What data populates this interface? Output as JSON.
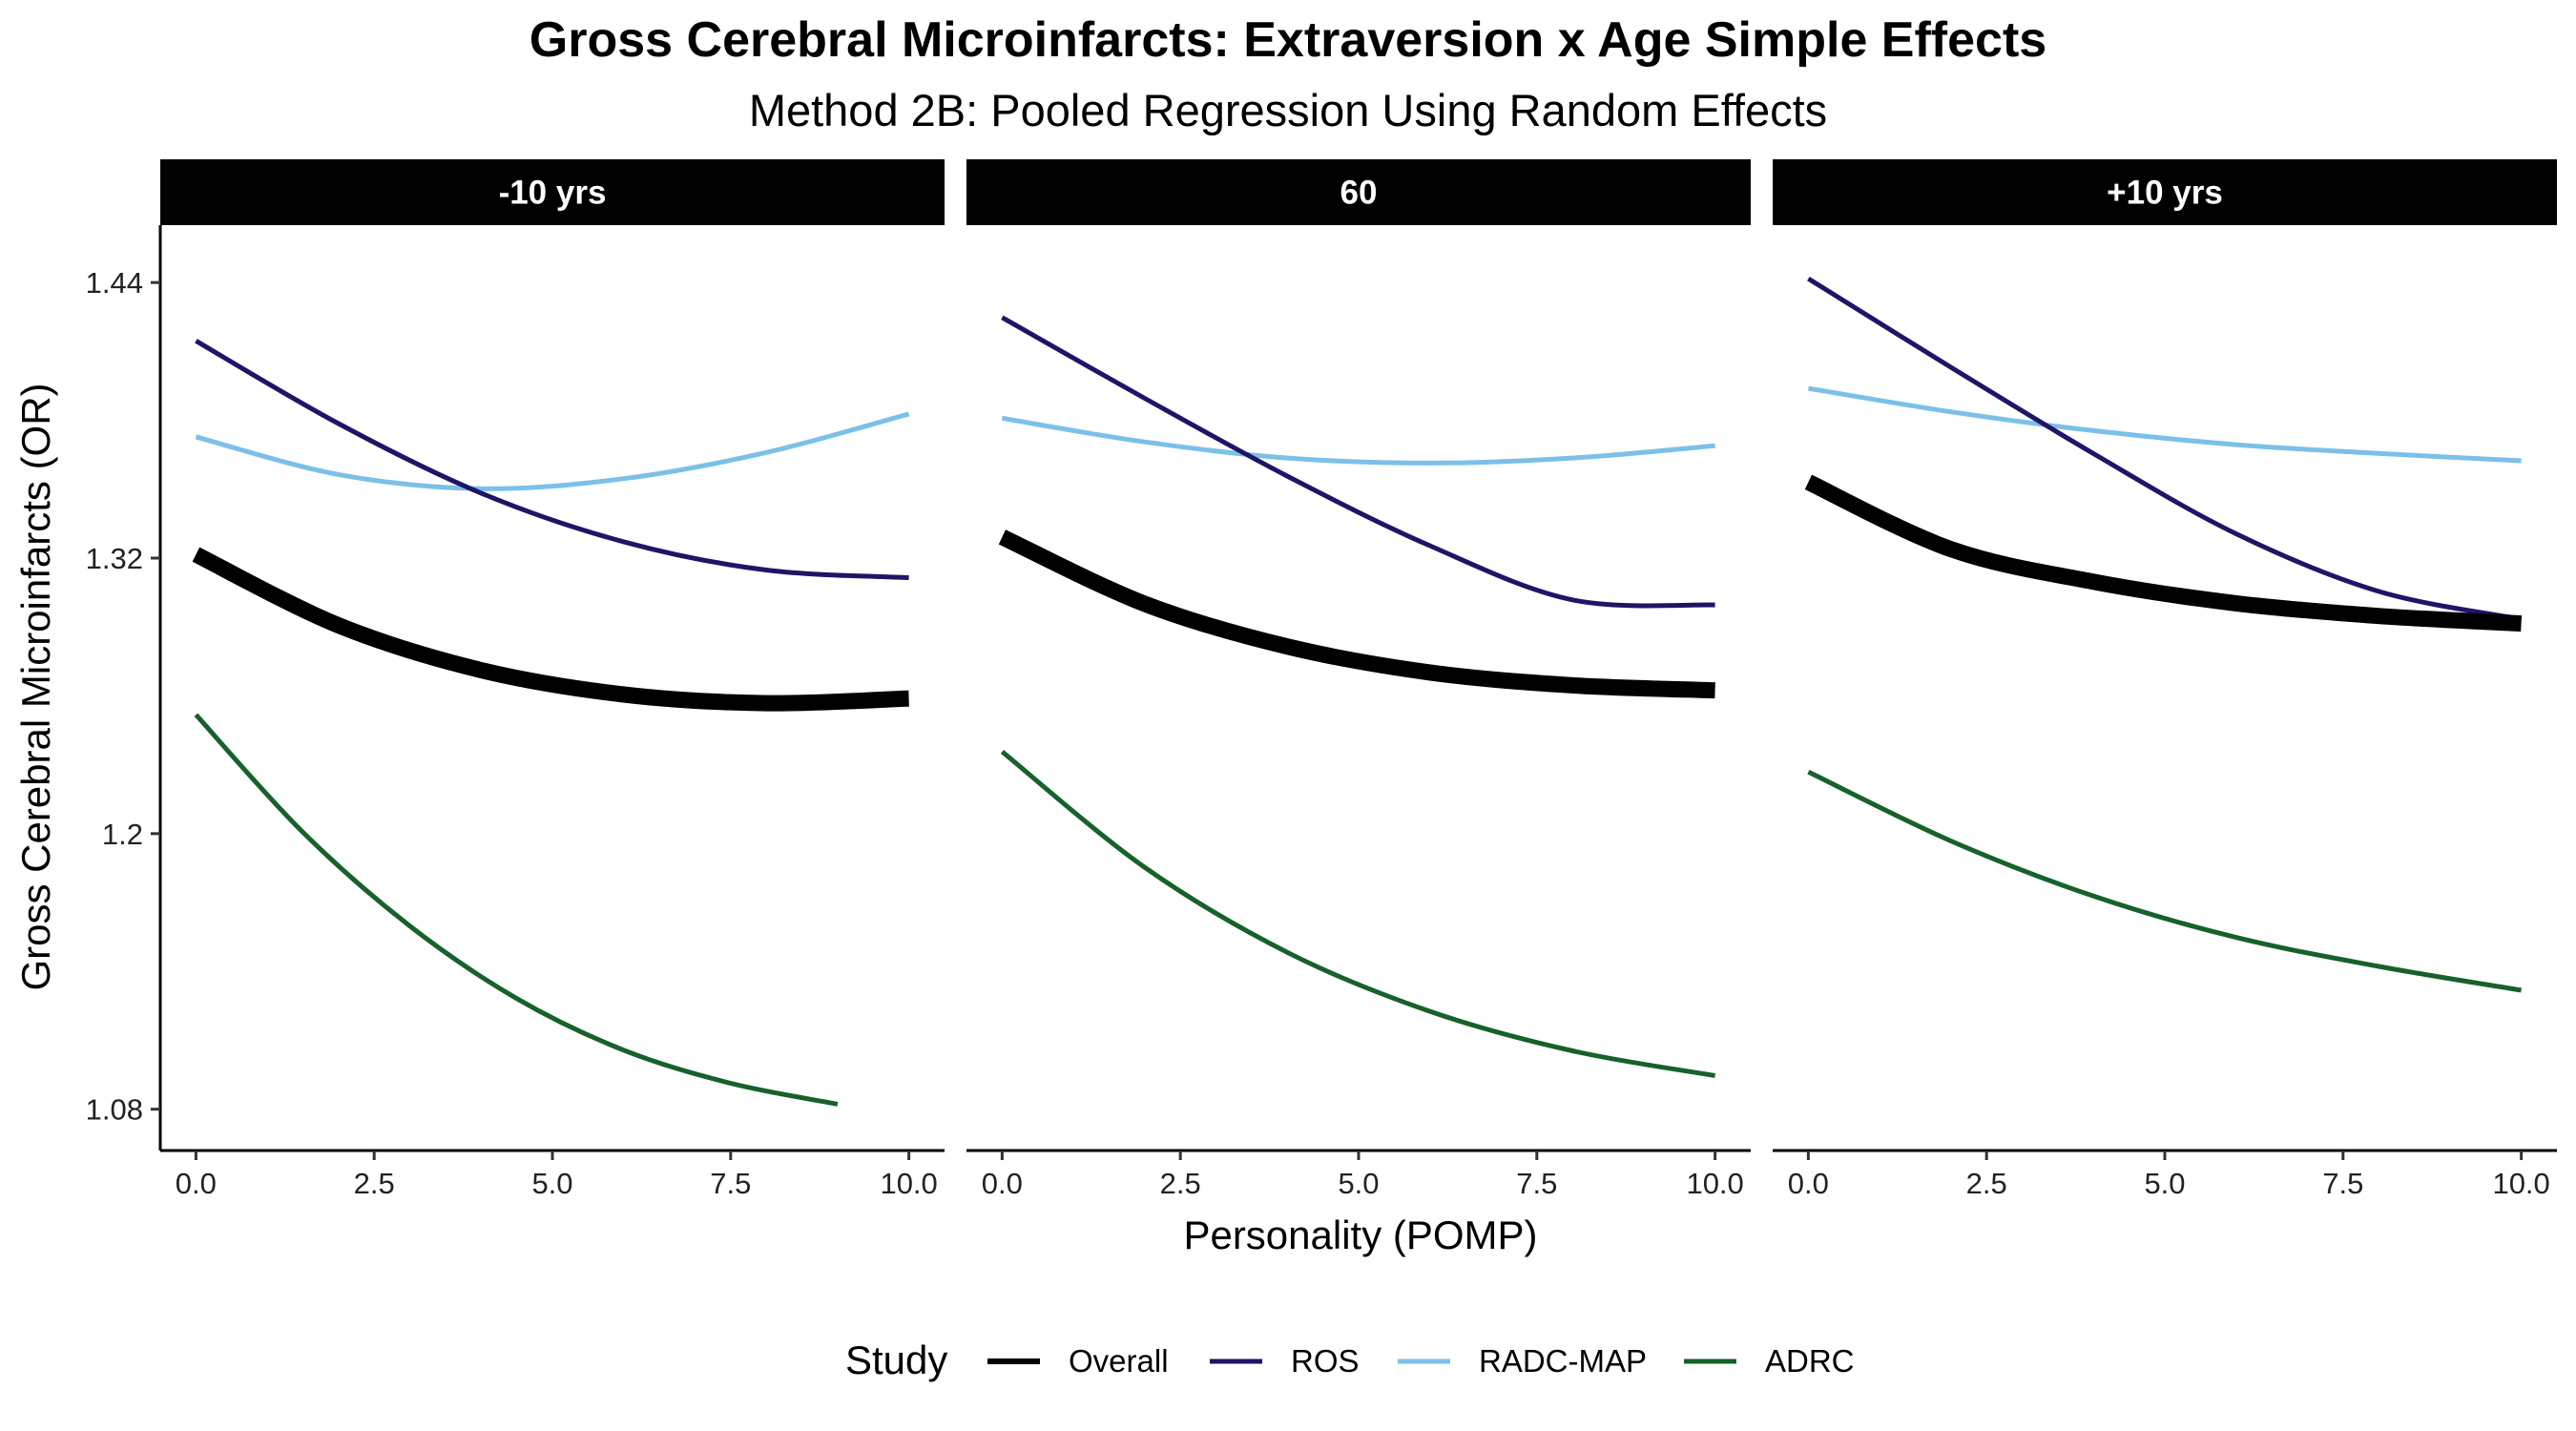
{
  "title": "Gross Cerebral Microinfarcts: Extraversion x Age Simple Effects",
  "subtitle": "Method 2B: Pooled Regression Using Random Effects",
  "chart_data": {
    "type": "line",
    "title": "Gross Cerebral Microinfarcts: Extraversion x Age Simple Effects",
    "subtitle": "Method 2B: Pooled Regression Using Random Effects",
    "xlabel": "Personality (POMP)",
    "ylabel": "Gross Cerebral Microinfarcts (OR)",
    "xlim": [
      -0.5,
      10.5
    ],
    "ylim": [
      1.062,
      1.465
    ],
    "x_ticks": [
      0,
      2.5,
      5,
      7.5,
      10
    ],
    "x_tick_labels": [
      "0.0",
      "2.5",
      "5.0",
      "7.5",
      "10.0"
    ],
    "y_ticks": [
      1.08,
      1.2,
      1.32,
      1.44
    ],
    "y_tick_labels": [
      "1.08",
      "1.2",
      "1.32",
      "1.44"
    ],
    "grid": false,
    "legend": {
      "title": "Study",
      "position": "bottom",
      "entries": [
        "Overall",
        "ROS",
        "RADC-MAP",
        "ADRC"
      ]
    },
    "series_styles": {
      "Overall": {
        "color": "#000000",
        "weight": "thick"
      },
      "ROS": {
        "color": "#1f1567",
        "weight": "normal"
      },
      "RADC-MAP": {
        "color": "#7cc0e8",
        "weight": "normal"
      },
      "ADRC": {
        "color": "#17612a",
        "weight": "normal"
      }
    },
    "panels": [
      {
        "strip": "-10 yrs",
        "series": [
          {
            "name": "RADC-MAP",
            "x": [
              0,
              2,
              4,
              6,
              8,
              10
            ],
            "y": [
              1.3728,
              1.3564,
              1.3502,
              1.3546,
              1.366,
              1.3828
            ]
          },
          {
            "name": "ROS",
            "x": [
              0,
              2,
              4,
              6,
              8,
              10
            ],
            "y": [
              1.4146,
              1.3786,
              1.3483,
              1.3271,
              1.3148,
              1.3115
            ]
          },
          {
            "name": "Overall",
            "x": [
              0,
              2,
              4,
              6,
              8,
              10
            ],
            "y": [
              1.3216,
              1.2907,
              1.2712,
              1.2606,
              1.2568,
              1.2589
            ]
          },
          {
            "name": "ADRC",
            "x": [
              0,
              1.5,
              3,
              4.5,
              6,
              7.5,
              9
            ],
            "y": [
              1.2518,
              1.2006,
              1.1598,
              1.1282,
              1.1057,
              1.0913,
              1.0822
            ]
          }
        ]
      },
      {
        "strip": "60",
        "series": [
          {
            "name": "RADC-MAP",
            "x": [
              0,
              2,
              4,
              6,
              8,
              10
            ],
            "y": [
              1.3809,
              1.3706,
              1.3636,
              1.3614,
              1.3636,
              1.3689
            ]
          },
          {
            "name": "ROS",
            "x": [
              0,
              2,
              4,
              6,
              8,
              10
            ],
            "y": [
              1.4248,
              1.3896,
              1.3557,
              1.3254,
              1.3018,
              1.2996
            ]
          },
          {
            "name": "Overall",
            "x": [
              0,
              2,
              4,
              6,
              8,
              10
            ],
            "y": [
              1.3292,
              1.3001,
              1.2815,
              1.2702,
              1.2646,
              1.2624
            ]
          },
          {
            "name": "ADRC",
            "x": [
              0,
              2,
              4,
              6,
              8,
              10
            ],
            "y": [
              1.2357,
              1.1853,
              1.1483,
              1.1226,
              1.1054,
              1.0946
            ]
          }
        ]
      },
      {
        "strip": "+10 yrs",
        "series": [
          {
            "name": "RADC-MAP",
            "x": [
              0,
              2,
              4,
              6,
              8,
              10
            ],
            "y": [
              1.3939,
              1.3837,
              1.3755,
              1.3694,
              1.3656,
              1.3624
            ]
          },
          {
            "name": "ROS",
            "x": [
              0,
              2,
              4,
              6,
              8,
              10
            ],
            "y": [
              1.4417,
              1.4031,
              1.3655,
              1.3306,
              1.3055,
              1.2934
            ]
          },
          {
            "name": "Overall",
            "x": [
              0,
              2,
              4,
              6,
              8,
              10
            ],
            "y": [
              1.3531,
              1.3239,
              1.3097,
              1.3003,
              1.2948,
              1.2915
            ]
          },
          {
            "name": "ADRC",
            "x": [
              0,
              2,
              4,
              6,
              8,
              10
            ],
            "y": [
              1.2269,
              1.1968,
              1.1728,
              1.1548,
              1.1422,
              1.1318
            ]
          }
        ]
      }
    ]
  }
}
